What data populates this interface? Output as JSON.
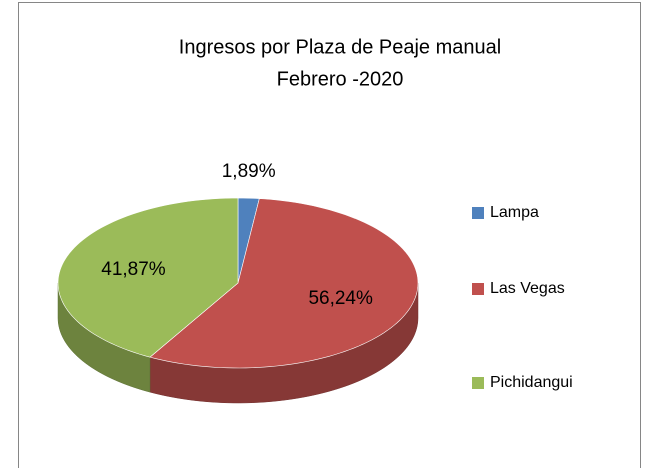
{
  "chart_data": {
    "type": "pie3d",
    "title": "Ingresos por Plaza de Peaje manual",
    "subtitle": "Febrero -2020",
    "categories": [
      "Lampa",
      "Las Vegas",
      "Pichidangui"
    ],
    "values": [
      1.89,
      56.24,
      41.87
    ],
    "value_labels": [
      "1,89%",
      "56,24%",
      "41,87%"
    ],
    "colors": [
      "#4f81bd",
      "#c0504d",
      "#9bbb59"
    ],
    "legend": "right"
  }
}
